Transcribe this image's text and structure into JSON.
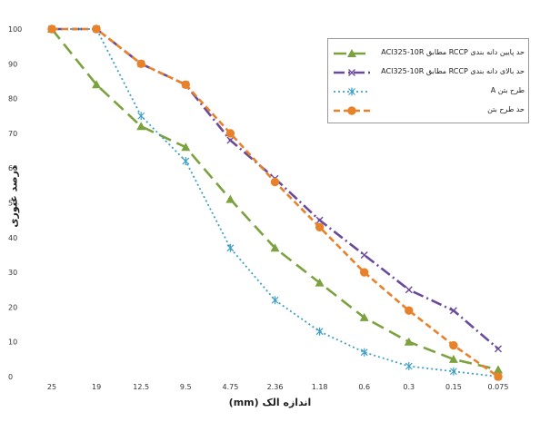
{
  "chart_data": {
    "type": "line",
    "title": "",
    "xlabel": "اندازه الک (mm)",
    "ylabel": "درصد عبوری",
    "categories": [
      "25",
      "19",
      "12.5",
      "9.5",
      "4.75",
      "2.36",
      "1.18",
      "0.6",
      "0.3",
      "0.15",
      "0.075"
    ],
    "ylim": [
      0,
      100
    ],
    "yticks": [
      0,
      10,
      20,
      30,
      40,
      50,
      60,
      70,
      80,
      90,
      100
    ],
    "grid": false,
    "legend_position": "top-right",
    "series": [
      {
        "name": "حد پایین دانه بندی RCCP مطابق ACI325-10R",
        "color": "#7ba23f",
        "marker": "triangle",
        "dash": "14,7",
        "values": [
          100,
          84,
          72,
          66,
          51,
          37,
          27,
          17,
          10,
          5,
          2
        ]
      },
      {
        "name": "حد بالای دانه بندی RCCP مطابق ACI325-10R",
        "color": "#6a4a9c",
        "marker": "x",
        "dash": "12,4,2,4",
        "values": [
          100,
          100,
          90,
          84,
          68,
          57,
          45,
          35,
          25,
          19,
          8
        ]
      },
      {
        "name": "طرح بتن A",
        "color": "#3ea0c6",
        "marker": "star",
        "dash": "2,3",
        "values": [
          100,
          100,
          75,
          62,
          37,
          22,
          13,
          7,
          3,
          1.5,
          0
        ]
      },
      {
        "name": "حد طرح بتن",
        "color": "#e8822a",
        "marker": "circle",
        "dash": "7,4",
        "values": [
          100,
          100,
          90,
          84,
          70,
          56,
          43,
          30,
          19,
          9,
          0
        ]
      }
    ]
  }
}
